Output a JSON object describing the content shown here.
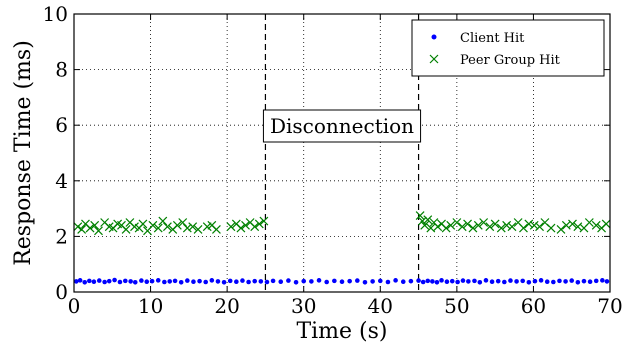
{
  "chart_data": {
    "type": "scatter",
    "xlabel": "Time (s)",
    "ylabel": "Response Time (ms)",
    "xlim": [
      0,
      70
    ],
    "ylim": [
      0,
      10
    ],
    "xticks": [
      0,
      10,
      20,
      30,
      40,
      50,
      60,
      70
    ],
    "yticks": [
      0,
      2,
      4,
      6,
      8,
      10
    ],
    "grid": true,
    "legend_position": "top-right",
    "annotation": {
      "text": "Disconnection",
      "x_start": 25,
      "x_end": 45
    },
    "series": [
      {
        "name": "Client Hit",
        "marker": "dot",
        "color": "#0000ff",
        "x": [
          0.3,
          0.8,
          1.4,
          2.0,
          2.6,
          3.3,
          4.0,
          4.6,
          5.3,
          6.0,
          6.7,
          7.4,
          8.0,
          8.8,
          9.5,
          10.2,
          11.0,
          11.8,
          12.5,
          13.2,
          14.0,
          14.8,
          15.6,
          16.4,
          17.2,
          18.0,
          18.8,
          19.6,
          20.4,
          21.2,
          22.0,
          22.8,
          23.6,
          24.4,
          25.2,
          26.0,
          27.0,
          28.0,
          29.0,
          30.0,
          31.0,
          32.0,
          33.0,
          34.0,
          35.0,
          36.0,
          37.0,
          38.0,
          39.0,
          40.0,
          41.0,
          42.0,
          43.0,
          44.0,
          45.0,
          45.6,
          46.2,
          46.8,
          47.4,
          48.0,
          48.7,
          49.4,
          50.1,
          50.8,
          51.5,
          52.3,
          53.0,
          53.8,
          54.6,
          55.4,
          56.2,
          57.0,
          57.8,
          58.6,
          59.4,
          60.2,
          61.0,
          61.8,
          62.6,
          63.4,
          64.2,
          65.0,
          65.8,
          66.6,
          67.4,
          68.2,
          69.0,
          69.6
        ],
        "y": [
          0.38,
          0.42,
          0.35,
          0.4,
          0.37,
          0.41,
          0.36,
          0.39,
          0.43,
          0.36,
          0.4,
          0.38,
          0.35,
          0.41,
          0.37,
          0.39,
          0.42,
          0.36,
          0.38,
          0.4,
          0.35,
          0.41,
          0.37,
          0.39,
          0.36,
          0.42,
          0.38,
          0.35,
          0.4,
          0.37,
          0.41,
          0.36,
          0.39,
          0.38,
          0.36,
          0.4,
          0.37,
          0.41,
          0.35,
          0.39,
          0.38,
          0.42,
          0.36,
          0.4,
          0.37,
          0.39,
          0.41,
          0.35,
          0.38,
          0.4,
          0.36,
          0.42,
          0.37,
          0.39,
          0.41,
          0.36,
          0.4,
          0.38,
          0.35,
          0.42,
          0.37,
          0.39,
          0.36,
          0.41,
          0.38,
          0.4,
          0.35,
          0.42,
          0.37,
          0.39,
          0.36,
          0.41,
          0.38,
          0.4,
          0.35,
          0.39,
          0.42,
          0.37,
          0.36,
          0.4,
          0.38,
          0.41,
          0.35,
          0.39,
          0.37,
          0.4,
          0.42,
          0.38
        ]
      },
      {
        "name": "Peer Group Hit",
        "marker": "x",
        "color": "#008000",
        "x": [
          0.5,
          1.0,
          1.5,
          2.1,
          2.7,
          3.2,
          4.0,
          4.6,
          5.1,
          5.7,
          6.2,
          6.8,
          7.3,
          7.9,
          8.5,
          9.0,
          9.6,
          10.3,
          11.0,
          11.6,
          12.2,
          12.9,
          13.5,
          14.2,
          14.8,
          15.5,
          16.2,
          17.4,
          18.0,
          18.6,
          20.5,
          21.2,
          21.8,
          22.4,
          23.0,
          23.6,
          24.2,
          24.8,
          45.2,
          45.5,
          45.8,
          46.2,
          46.6,
          47.0,
          47.5,
          48.0,
          48.6,
          49.2,
          50.0,
          50.7,
          51.4,
          52.1,
          52.8,
          53.5,
          54.3,
          55.0,
          55.8,
          56.5,
          57.2,
          58.0,
          58.7,
          59.4,
          60.1,
          60.8,
          61.5,
          62.3,
          63.6,
          64.3,
          65.1,
          65.8,
          66.6,
          67.3,
          68.2,
          68.9,
          69.5
        ],
        "y": [
          2.35,
          2.25,
          2.45,
          2.3,
          2.4,
          2.2,
          2.5,
          2.35,
          2.3,
          2.45,
          2.4,
          2.25,
          2.5,
          2.35,
          2.3,
          2.45,
          2.2,
          2.4,
          2.3,
          2.55,
          2.35,
          2.25,
          2.4,
          2.5,
          2.3,
          2.35,
          2.25,
          2.35,
          2.4,
          2.25,
          2.35,
          2.45,
          2.3,
          2.4,
          2.5,
          2.35,
          2.45,
          2.55,
          2.75,
          2.55,
          2.4,
          2.6,
          2.3,
          2.5,
          2.35,
          2.45,
          2.3,
          2.4,
          2.5,
          2.35,
          2.45,
          2.3,
          2.4,
          2.5,
          2.35,
          2.45,
          2.3,
          2.4,
          2.35,
          2.5,
          2.3,
          2.45,
          2.4,
          2.35,
          2.5,
          2.3,
          2.25,
          2.4,
          2.45,
          2.35,
          2.3,
          2.5,
          2.4,
          2.3,
          2.45
        ]
      }
    ]
  }
}
